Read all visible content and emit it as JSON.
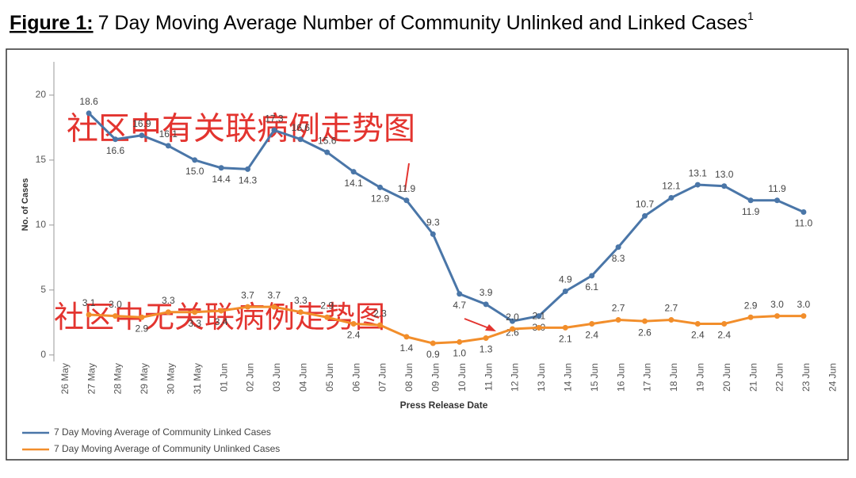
{
  "chart_data": {
    "type": "line",
    "title": {
      "prefix": "Figure 1:",
      "text": "7 Day Moving Average Number of Community Unlinked and Linked Cases",
      "sup": "1"
    },
    "ylabel": "No. of Cases",
    "xlabel": "Press Release Date",
    "annotations": [
      "社区中有关联病例走势图",
      "社区中无关联病例走势图"
    ],
    "categories": [
      "26 May",
      "27 May",
      "28 May",
      "29 May",
      "30 May",
      "31 May",
      "01 Jun",
      "02 Jun",
      "03 Jun",
      "04 Jun",
      "05 Jun",
      "06 Jun",
      "07 Jun",
      "08 Jun",
      "09 Jun",
      "10 Jun",
      "11 Jun",
      "12 Jun",
      "13 Jun",
      "14 Jun",
      "15 Jun",
      "16 Jun",
      "17 Jun",
      "18 Jun",
      "19 Jun",
      "20 Jun",
      "21 Jun",
      "22 Jun",
      "23 Jun",
      "24 Jun"
    ],
    "ylim": [
      -0.5,
      22.5
    ],
    "yticks": [
      0,
      5,
      10,
      15,
      20
    ],
    "grid": false,
    "series": [
      {
        "name": "7 Day Moving Average of Community Linked Cases",
        "color": "#4a76a8",
        "values": [
          null,
          18.6,
          16.6,
          16.9,
          16.1,
          15.0,
          14.4,
          14.3,
          17.3,
          16.6,
          15.6,
          14.1,
          12.9,
          11.9,
          9.3,
          4.7,
          3.9,
          2.6,
          3.0,
          4.9,
          6.1,
          8.3,
          10.7,
          12.1,
          13.1,
          13.0,
          11.9,
          11.9,
          11.0,
          null
        ],
        "value_labels": [
          null,
          "18.6",
          "16.6",
          "16.9",
          "16.1",
          "15.0",
          "14.4",
          "14.3",
          "17.3",
          "16.6",
          "15.6",
          "14.1",
          "12.9",
          "11.9",
          "9.3",
          "4.7",
          "3.9",
          "2.6",
          "3.0",
          "4.9",
          "6.1",
          "8.3",
          "10.7",
          "12.1",
          "13.1",
          "13.0",
          "11.9",
          "11.9",
          "11.0",
          null
        ]
      },
      {
        "name": "7 Day Moving Average of Community Unlinked Cases",
        "color": "#f28e2b",
        "values": [
          null,
          3.1,
          3.0,
          2.9,
          3.3,
          3.3,
          3.4,
          3.7,
          3.7,
          3.3,
          2.9,
          2.4,
          2.3,
          1.4,
          0.9,
          1.0,
          1.3,
          2.0,
          2.1,
          2.1,
          2.4,
          2.7,
          2.6,
          2.7,
          2.4,
          2.4,
          2.9,
          3.0,
          3.0,
          null
        ],
        "value_labels": [
          null,
          "3.1",
          "3.0",
          "2.9",
          "3.3",
          "3.3",
          "3.4",
          "3.7",
          "3.7",
          "3.3",
          "2.9",
          "2.4",
          "2.3",
          "1.4",
          "0.9",
          "1.0",
          "1.3",
          "2.0",
          "2.1",
          "2.1",
          "2.4",
          "2.7",
          "2.6",
          "2.7",
          "2.4",
          "2.4",
          "2.9",
          "3.0",
          "3.0",
          null
        ]
      }
    ]
  }
}
